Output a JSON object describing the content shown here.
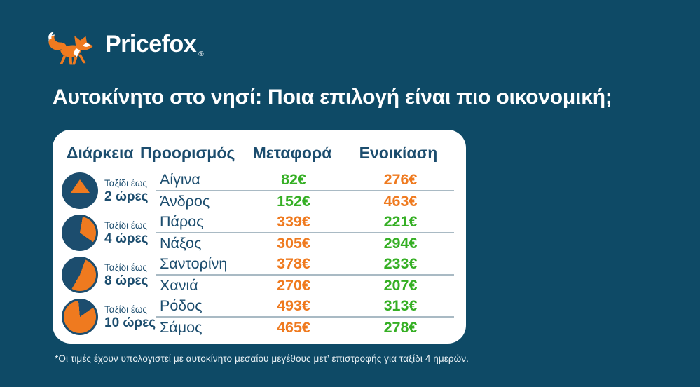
{
  "brand": {
    "name": "Pricefox",
    "registered_mark": "®",
    "fox_icon": "fox-icon"
  },
  "title": "Αυτοκίνητο στο νησί: Ποια επιλογή είναι πιο οικονομική;",
  "colors": {
    "background": "#0E4A66",
    "card": "#FFFFFF",
    "navy": "#1C4D6E",
    "orange": "#EF7A1F",
    "green": "#35AF24",
    "separator": "#A9BAC4",
    "footnote_text": "#E9F1F5"
  },
  "table": {
    "headers": {
      "duration": "Διάρκεια",
      "destination": "Προορισμός",
      "transport": "Μεταφορά",
      "rental": "Ενοικίαση"
    },
    "groups": [
      {
        "duration_prefix": "Ταξίδι έως",
        "duration_value": "2 ώρες",
        "icon": {
          "name": "pie-2h-icon",
          "kind": "triangle"
        },
        "rows": [
          {
            "destination": "Αίγινα",
            "transport": "82€",
            "transport_color": "green",
            "rental": "276€",
            "rental_color": "orange"
          },
          {
            "destination": "Άνδρος",
            "transport": "152€",
            "transport_color": "green",
            "rental": "463€",
            "rental_color": "orange"
          }
        ]
      },
      {
        "duration_prefix": "Ταξίδι έως",
        "duration_value": "4 ώρες",
        "icon": {
          "name": "pie-4h-icon",
          "kind": "wedge",
          "from_deg": 10,
          "sweep_deg": 115
        },
        "rows": [
          {
            "destination": "Πάρος",
            "transport": "339€",
            "transport_color": "orange",
            "rental": "221€",
            "rental_color": "green"
          },
          {
            "destination": "Νάξος",
            "transport": "305€",
            "transport_color": "orange",
            "rental": "294€",
            "rental_color": "green"
          }
        ]
      },
      {
        "duration_prefix": "Ταξίδι έως",
        "duration_value": "8 ώρες",
        "icon": {
          "name": "pie-8h-icon",
          "kind": "wedge",
          "from_deg": 20,
          "sweep_deg": 190
        },
        "rows": [
          {
            "destination": "Σαντορίνη",
            "transport": "378€",
            "transport_color": "orange",
            "rental": "233€",
            "rental_color": "green"
          },
          {
            "destination": "Χανιά",
            "transport": "270€",
            "transport_color": "orange",
            "rental": "207€",
            "rental_color": "green"
          }
        ]
      },
      {
        "duration_prefix": "Ταξίδι έως",
        "duration_value": "10 ώρες",
        "icon": {
          "name": "pie-10h-icon",
          "kind": "wedge",
          "from_deg": 55,
          "sweep_deg": 300
        },
        "rows": [
          {
            "destination": "Ρόδος",
            "transport": "493€",
            "transport_color": "orange",
            "rental": "313€",
            "rental_color": "green"
          },
          {
            "destination": "Σάμος",
            "transport": "465€",
            "transport_color": "orange",
            "rental": "278€",
            "rental_color": "green"
          }
        ]
      }
    ]
  },
  "footnote": "*Οι τιμές έχουν υπολογιστεί με αυτοκίνητο μεσαίου μεγέθους μετ’ επιστροφής για ταξίδι 4 ημερών.",
  "chart_data": {
    "type": "table",
    "title": "Αυτοκίνητο στο νησί: Ποια επιλογή είναι πιο οικονομική;",
    "columns": [
      "Διάρκεια",
      "Προορισμός",
      "Μεταφορά",
      "Ενοικίαση"
    ],
    "rows": [
      [
        "Ταξίδι έως 2 ώρες",
        "Αίγινα",
        "82€",
        "276€"
      ],
      [
        "Ταξίδι έως 2 ώρες",
        "Άνδρος",
        "152€",
        "463€"
      ],
      [
        "Ταξίδι έως 4 ώρες",
        "Πάρος",
        "339€",
        "221€"
      ],
      [
        "Ταξίδι έως 4 ώρες",
        "Νάξος",
        "305€",
        "294€"
      ],
      [
        "Ταξίδι έως 8 ώρες",
        "Σαντορίνη",
        "378€",
        "233€"
      ],
      [
        "Ταξίδι έως 8 ώρες",
        "Χανιά",
        "270€",
        "207€"
      ],
      [
        "Ταξίδι έως 10 ώρες",
        "Ρόδος",
        "493€",
        "313€"
      ],
      [
        "Ταξίδι έως 10 ώρες",
        "Σάμος",
        "465€",
        "278€"
      ]
    ],
    "value_color_rule": "green value = cheaper option of the row, orange value = more expensive option"
  }
}
